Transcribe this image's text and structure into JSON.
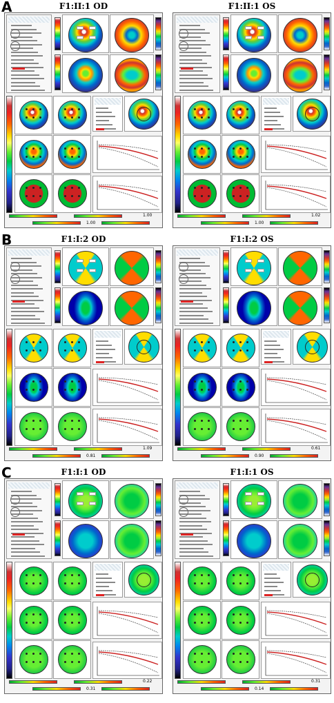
{
  "sections": [
    {
      "letter": "A",
      "left_title": "F1:II:1 OD",
      "right_title": "F1:II:1 OS",
      "top_theme": "cone",
      "mid_theme": "steep",
      "small_theme": "cone",
      "thick_color": "red",
      "left": {
        "v1": "1.00",
        "v2": "1.00"
      },
      "right": {
        "v1": "1.02",
        "v2": "1.00"
      }
    },
    {
      "letter": "B",
      "left_title": "F1:I:2 OD",
      "right_title": "F1:I:2 OS",
      "top_theme": "bowtie",
      "mid_theme": "bowtie",
      "small_theme": "bowtie",
      "thick_color": "green",
      "left": {
        "v1": "1.09",
        "v2": "0.81"
      },
      "right": {
        "v1": "0.61",
        "v2": "0.90"
      }
    },
    {
      "letter": "C",
      "left_title": "F1:I:1 OD",
      "right_title": "F1:I:1 OS",
      "top_theme": "regular",
      "mid_theme": "regular",
      "small_theme": "green",
      "thick_color": "green",
      "left": {
        "v1": "0.22",
        "v2": "0.31"
      },
      "right": {
        "v1": "0.31",
        "v2": "0.14"
      }
    }
  ],
  "colors": {
    "background": "#ffffff",
    "panel": "#f3f3f3",
    "curve_red": "#cc2222",
    "curve_gray": "#444444"
  }
}
